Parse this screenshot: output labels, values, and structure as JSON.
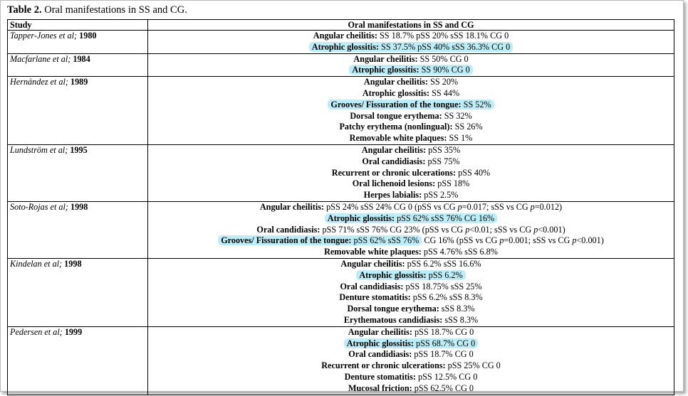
{
  "caption": {
    "label": "Table 2.",
    "text": " Oral manifestations in SS and CG."
  },
  "header": {
    "study": "Study",
    "manifestations": "Oral manifestations in SS and CG"
  },
  "rows": [
    {
      "authors": "Tapper-Jones et al;",
      "year": " 1980",
      "items": [
        {
          "label": "Angular cheilitis:",
          "value": " SS 18.7%  pSS 20%  sSS 18.1%  CG 0",
          "highlight": false
        },
        {
          "label": "Atrophic glossitis:",
          "value": " SS 37.5%  pSS 40%  sSS 36.3%  CG 0",
          "highlight": true
        }
      ]
    },
    {
      "authors": "Macfarlane et al;",
      "year": " 1984",
      "items": [
        {
          "label": "Angular cheilitis:",
          "value": " SS 50% CG 0",
          "highlight": false
        },
        {
          "label": "Atrophic glossitis:",
          "value": " SS 90% CG 0",
          "highlight": true
        }
      ]
    },
    {
      "authors": "Hernández et al;",
      "year": " 1989",
      "items": [
        {
          "label": "Angular cheilitis:",
          "value": " SS 20%",
          "highlight": false
        },
        {
          "label": "Atrophic glossitis:",
          "value": " SS 44%",
          "highlight": false
        },
        {
          "label": "Grooves/ Fissuration of the tongue:",
          "value": " SS 52%",
          "highlight": true
        },
        {
          "label": "Dorsal tongue erythema:",
          "value": " SS 32%",
          "highlight": false
        },
        {
          "label": "Patchy erythema (nonlingual):",
          "value": " SS 26%",
          "highlight": false
        },
        {
          "label": "Removable white plaques:",
          "value": " SS 1%",
          "highlight": false
        }
      ]
    },
    {
      "authors": "Lundström et al;",
      "year": " 1995",
      "items": [
        {
          "label": "Angular cheilitis:",
          "value": " pSS 35%",
          "highlight": false
        },
        {
          "label": "Oral candidiasis:",
          "value": " pSS 75%",
          "highlight": false
        },
        {
          "label": "Recurrent or chronic ulcerations:",
          "value": " pSS 40%",
          "highlight": false
        },
        {
          "label": "Oral lichenoid lesions:",
          "value": " pSS 18%",
          "highlight": false
        },
        {
          "label": "Herpes labialis:",
          "value": " pSS 2.5%",
          "highlight": false
        }
      ]
    },
    {
      "authors": "Soto-Rojas et al;",
      "year": " 1998",
      "items": [
        {
          "label": "Angular cheilitis:",
          "value": " pSS 24% sSS 24% CG 0 (pSS vs CG p=0.017; sSS vs CG p=0.012)",
          "highlight": false
        },
        {
          "label": "Atrophic glossitis:",
          "value": " pSS 62% sSS 76% CG 16%",
          "highlight": true
        },
        {
          "label": "Oral candidiasis:",
          "value": " pSS 71% sSS 76% CG 23% (pSS vs CG p<0.01; sSS vs CG p<0.001)",
          "highlight": false
        },
        {
          "label": "Grooves/ Fissuration of the tongue:",
          "value": " pSS 62% sSS 76%",
          "tail": " CG 16% (pSS vs CG p=0.001; sSS vs CG p<0.001)",
          "highlight": true,
          "partial": true
        },
        {
          "label": "Removable white plaques:",
          "value": " pSS 4.76% sSS 6.8%",
          "highlight": false
        }
      ]
    },
    {
      "authors": "Kindelan et al;",
      "year": " 1998",
      "items": [
        {
          "label": "Angular cheilitis:",
          "value": " pSS 6.2% sSS 16.6%",
          "highlight": false
        },
        {
          "label": "Atrophic glossitis:",
          "value": " pSS 6.2%",
          "highlight": true
        },
        {
          "label": "Oral candidiasis:",
          "value": "  pSS 18.75%  sSS 25%",
          "highlight": false
        },
        {
          "label": "Denture stomatitis:",
          "value": " pSS 6.2%  sSS 8.3%",
          "highlight": false
        },
        {
          "label": "Dorsal tongue erythema:",
          "value": "  sSS 8.3%",
          "highlight": false
        },
        {
          "label": "Erythematous candidiasis:",
          "value": " sSS 8.3%",
          "highlight": false
        }
      ]
    },
    {
      "authors": "Pedersen et al;",
      "year": " 1999",
      "items": [
        {
          "label": "Angular cheilitis:",
          "value": " pSS 18.7%  CG 0",
          "highlight": false
        },
        {
          "label": "Atrophic glossitis:",
          "value": " pSS 68.7%  CG 0",
          "highlight": true
        },
        {
          "label": "Oral candidiasis:",
          "value": " pSS 18.7%  CG 0",
          "highlight": false
        },
        {
          "label": "Recurrent or chronic ulcerations:",
          "value": "  pSS 25% CG 0",
          "highlight": false
        },
        {
          "label": "Denture stomatitis:",
          "value": " pSS 12.5% CG 0",
          "highlight": false
        },
        {
          "label": "Mucosal friction:",
          "value": " pSS 62.5%  CG 0",
          "highlight": false
        }
      ]
    }
  ]
}
